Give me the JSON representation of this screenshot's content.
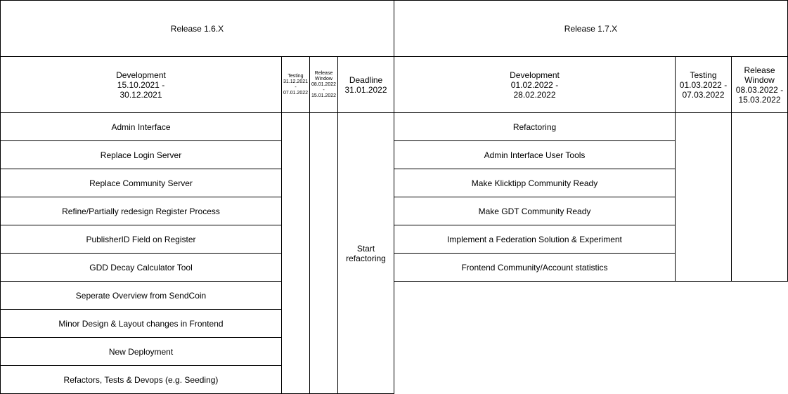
{
  "left": {
    "title": "Release 1.6.X",
    "development": {
      "label": "Development",
      "dates": "15.10.2021 -",
      "dates2": "30.12.2021"
    },
    "testing": {
      "label": "Testing",
      "l1": "31.12.2021",
      "l2": "-",
      "l3": "07.01.2022"
    },
    "release_window": {
      "label": "Release Window",
      "l1": "08.01.2022",
      "l2": "-",
      "l3": "15.01.2022"
    },
    "deadline": {
      "label": "Deadline",
      "date": "31.01.2022",
      "task": "Start refactoring"
    },
    "items": [
      "Admin Interface",
      "Replace Login Server",
      "Replace Community Server",
      "Refine/Partially redesign Register Process",
      "PublisherID Field on Register",
      "GDD Decay Calculator Tool",
      "Seperate Overview from SendCoin",
      "Minor Design & Layout changes in Frontend",
      "New Deployment",
      "Refactors, Tests & Devops (e.g. Seeding)"
    ]
  },
  "right": {
    "title": "Release 1.7.X",
    "development": {
      "label": "Development",
      "dates": "01.02.2022 -",
      "dates2": "28.02.2022"
    },
    "testing": {
      "label": "Testing",
      "dates": "01.03.2022 -",
      "dates2": "07.03.2022"
    },
    "release_window": {
      "label": "Release Window",
      "dates": "08.03.2022 -",
      "dates2": "15.03.2022"
    },
    "items": [
      "Refactoring",
      "Admin Interface User Tools",
      "Make Klicktipp Community Ready",
      "Make GDT Community Ready",
      "Implement a Federation Solution & Experiment",
      "Frontend Community/Account statistics"
    ]
  }
}
